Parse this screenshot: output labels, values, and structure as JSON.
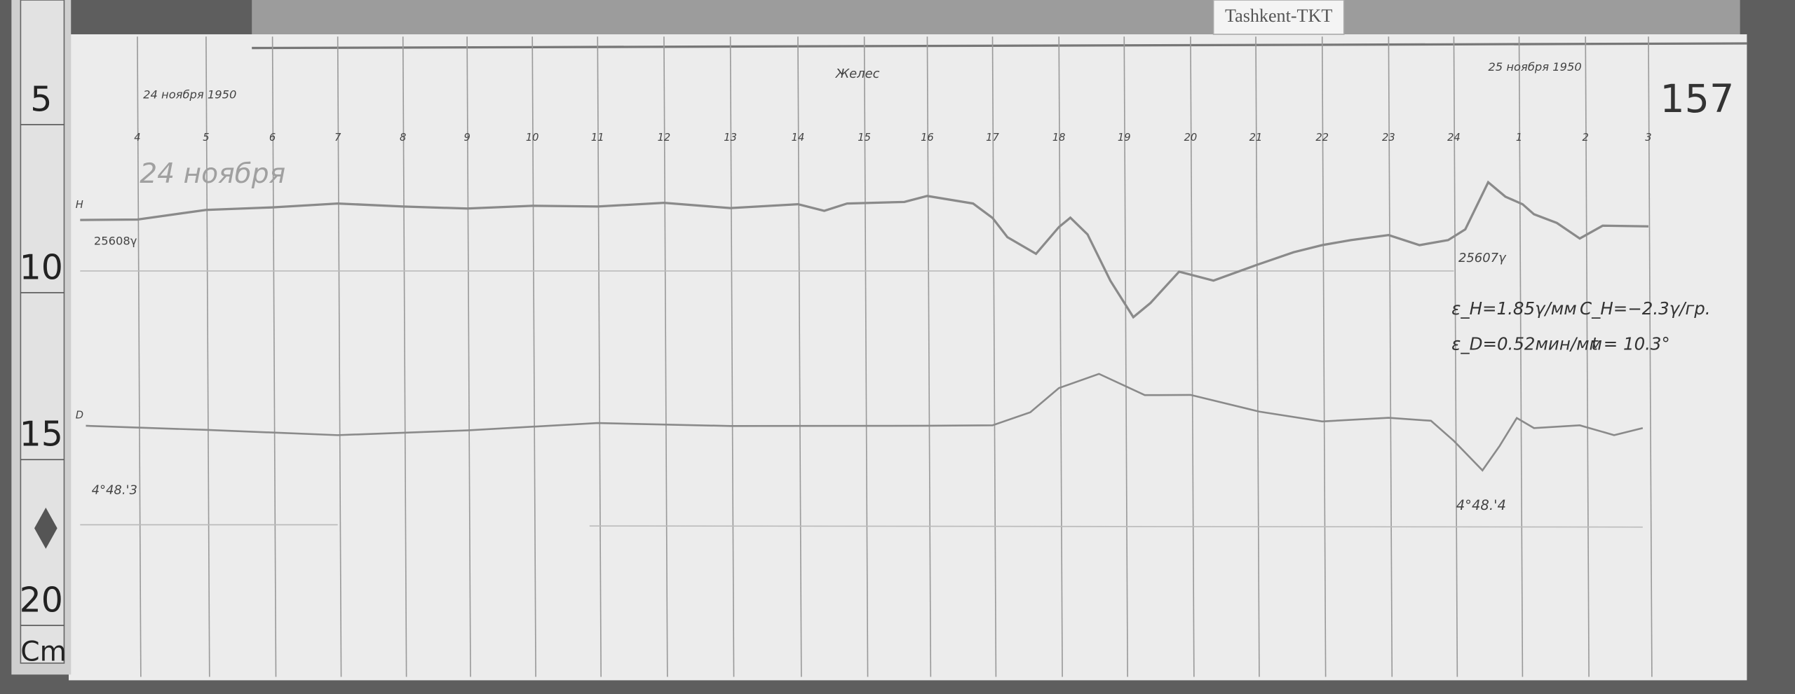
{
  "station_label": "Tashkent-TKT",
  "sheet_number": "157",
  "date_start": "24 ноября 1950",
  "date_end": "25 ноября 1950",
  "date_pencil": "24 ноября",
  "signature": "Желес",
  "hour_ticks": [
    "4",
    "5",
    "6",
    "7",
    "8",
    "9",
    "10",
    "11",
    "12",
    "13",
    "14",
    "15",
    "16",
    "17",
    "18",
    "19",
    "20",
    "21",
    "22",
    "23",
    "24",
    "1",
    "2",
    "3"
  ],
  "ruler_marks": [
    "5",
    "10",
    "15",
    "20"
  ],
  "ruler_unit": "Cm",
  "h_trace": {
    "mark": "H",
    "baseline_start": "25608γ",
    "baseline_end": "25607γ"
  },
  "d_trace": {
    "mark": "D",
    "baseline_start": "4°48.'3",
    "baseline_end": "4°48.'4"
  },
  "constants": {
    "line1_eh": "ε_H=1.85γ/мм",
    "line1_ch": "C_H=−2.3γ/гр.",
    "line2_ed": "ε_D=0.52мин/мм",
    "line2_t": "t = 10.3°"
  },
  "colors": {
    "paper": "#ececec",
    "grid": "#9a9a9a",
    "trace": "#8a8a8a",
    "wood": "#5e5e5e"
  }
}
